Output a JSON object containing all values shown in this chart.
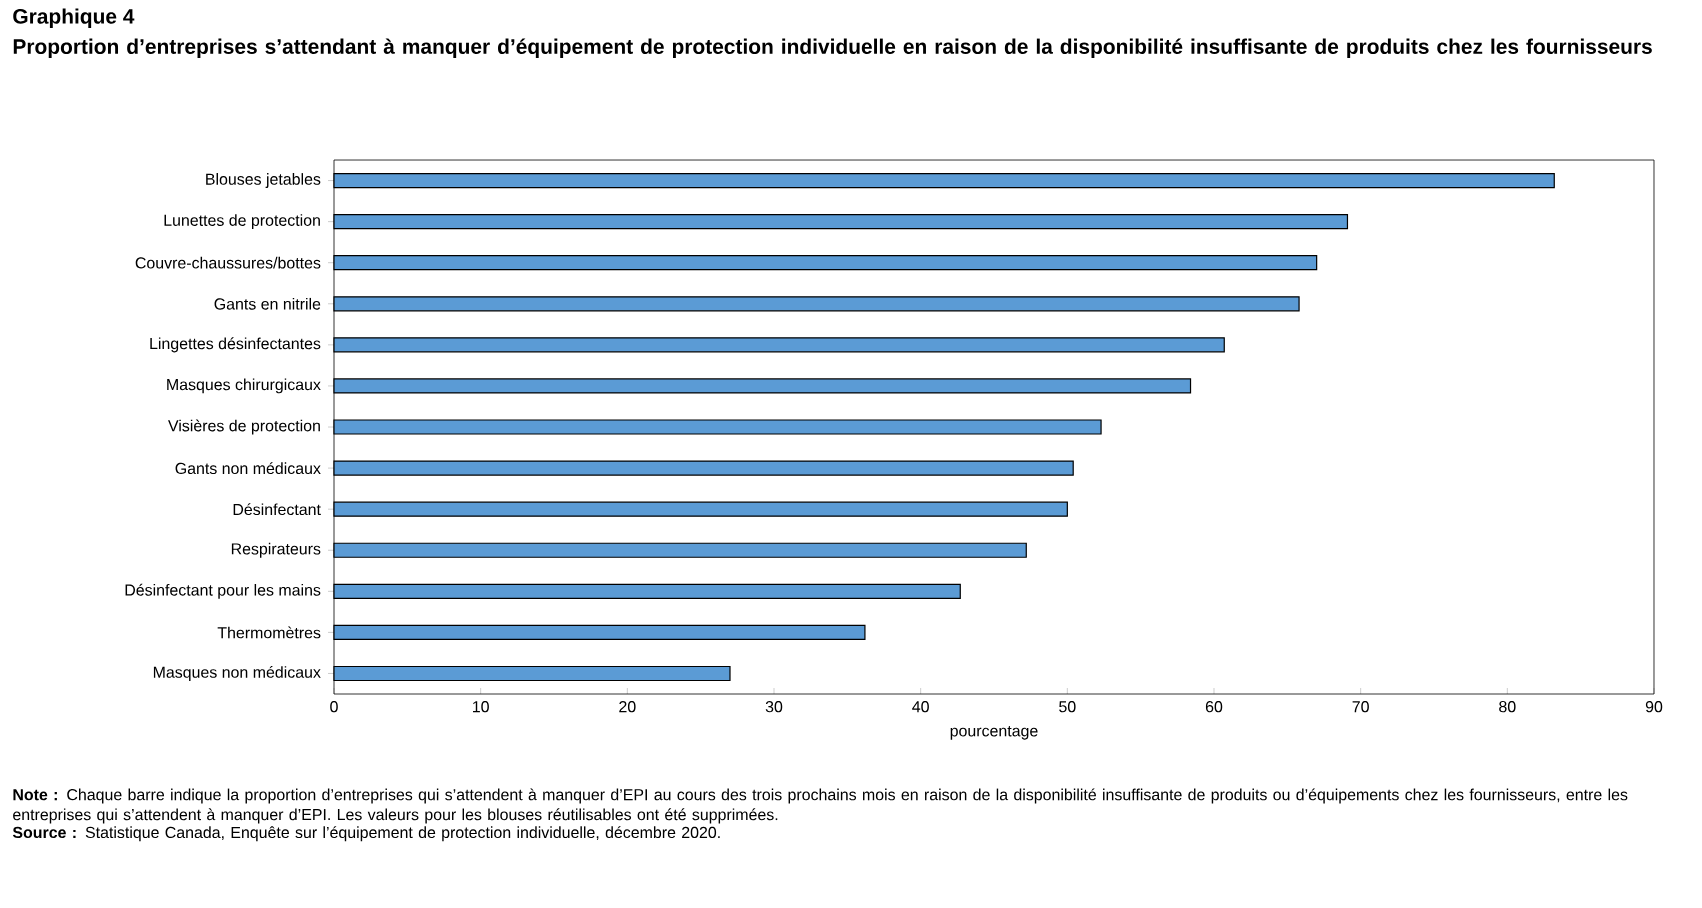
{
  "chart_data": {
    "type": "bar",
    "orientation": "horizontal",
    "title": "Graphique 4",
    "subtitle": "Proportion d’entreprises s’attendant à manquer d’équipement de protection individuelle en raison de la disponibilité insuffisante de produits chez les fournisseurs",
    "categories": [
      "Blouses jetables",
      "Lunettes de protection",
      "Couvre-chaussures/bottes",
      "Gants en nitrile",
      "Lingettes désinfectantes",
      "Masques chirurgicaux",
      "Visières de protection",
      "Gants non médicaux",
      "Désinfectant",
      "Respirateurs",
      "Désinfectant pour les mains",
      "Thermomètres",
      "Masques non médicaux"
    ],
    "values": [
      83.2,
      69.1,
      67.0,
      65.8,
      60.7,
      58.4,
      52.3,
      50.4,
      50.0,
      47.2,
      42.7,
      36.2,
      27.0
    ],
    "color": "#5b9bd5",
    "xlabel": "pourcentage",
    "xlim": [
      0,
      90
    ],
    "xticks": [
      0,
      10,
      20,
      30,
      40,
      50,
      60,
      70,
      80,
      90
    ],
    "annotations": [
      "**Note :** Chaque barre indique la proportion d’entreprises qui s’attendent à manquer d’EPI au cours des trois prochains mois en raison de la disponibilité insuffisante de produits ou d’équipements chez les fournisseurs, entre les entreprises qui s’attendent à manquer d’EPI. Les valeurs pour les blouses réutilisables ont été supprimées.",
      "**Source :** Statistique Canada, Enquête sur l’équipement de protection individuelle, décembre 2020."
    ]
  }
}
